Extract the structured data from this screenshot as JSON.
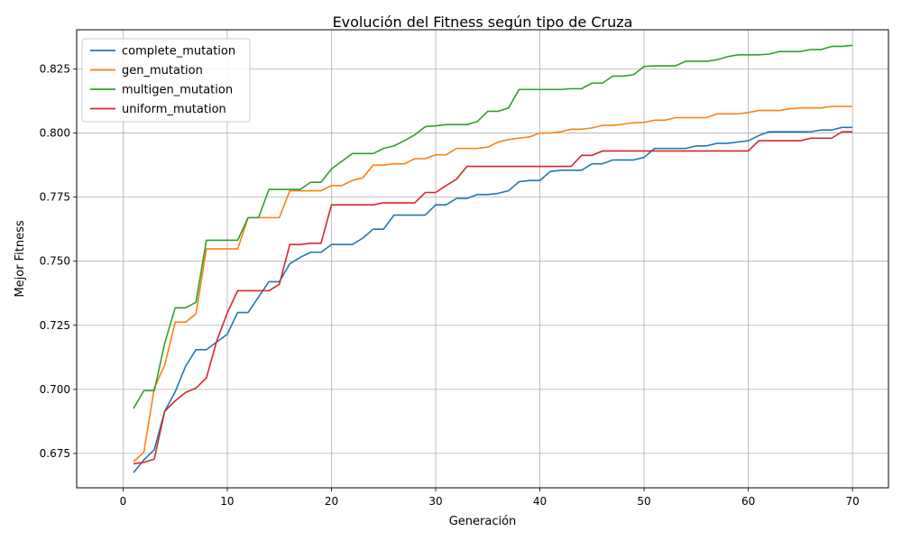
{
  "chart_data": {
    "type": "line",
    "title": "Evolución del Fitness según tipo de Cruza",
    "xlabel": "Generación",
    "ylabel": "Mejor Fitness",
    "xlim": [
      -4.45,
      73.45
    ],
    "ylim": [
      0.6616,
      0.8403
    ],
    "xticks": [
      0,
      10,
      20,
      30,
      40,
      50,
      60,
      70
    ],
    "yticks": [
      0.675,
      0.7,
      0.725,
      0.75,
      0.775,
      0.8,
      0.825
    ],
    "xtick_labels": [
      "0",
      "10",
      "20",
      "30",
      "40",
      "50",
      "60",
      "70"
    ],
    "ytick_labels": [
      "0.675",
      "0.700",
      "0.725",
      "0.750",
      "0.775",
      "0.800",
      "0.825"
    ],
    "grid": true,
    "legend_position": "top-left",
    "series": [
      {
        "name": "complete_mutation",
        "color": "#1f77b4",
        "x": [
          1,
          2,
          3,
          4,
          5,
          6,
          7,
          8,
          9,
          10,
          11,
          12,
          13,
          14,
          15,
          16,
          17,
          18,
          19,
          20,
          21,
          22,
          23,
          24,
          25,
          26,
          27,
          28,
          29,
          30,
          31,
          32,
          33,
          34,
          35,
          36,
          37,
          38,
          39,
          40,
          41,
          42,
          43,
          44,
          45,
          46,
          47,
          48,
          49,
          50,
          51,
          52,
          53,
          54,
          55,
          56,
          57,
          58,
          59,
          60,
          61,
          62,
          63,
          64,
          65,
          66,
          67,
          68,
          69,
          70
        ],
        "y": [
          0.6675,
          0.6725,
          0.6765,
          0.6915,
          0.699,
          0.709,
          0.7155,
          0.7155,
          0.7185,
          0.7215,
          0.73,
          0.73,
          0.736,
          0.742,
          0.742,
          0.749,
          0.7515,
          0.7535,
          0.7535,
          0.7565,
          0.7565,
          0.7565,
          0.759,
          0.7625,
          0.7625,
          0.768,
          0.768,
          0.768,
          0.768,
          0.772,
          0.772,
          0.7745,
          0.7745,
          0.776,
          0.776,
          0.7765,
          0.7775,
          0.781,
          0.7815,
          0.7815,
          0.785,
          0.7855,
          0.7855,
          0.7855,
          0.788,
          0.788,
          0.7895,
          0.7895,
          0.7895,
          0.7905,
          0.794,
          0.794,
          0.794,
          0.794,
          0.795,
          0.795,
          0.796,
          0.796,
          0.7965,
          0.797,
          0.799,
          0.8005,
          0.8005,
          0.8005,
          0.8005,
          0.8005,
          0.8012,
          0.8012,
          0.8022,
          0.8022
        ]
      },
      {
        "name": "gen_mutation",
        "color": "#ff7f0e",
        "x": [
          1,
          2,
          3,
          4,
          5,
          6,
          7,
          8,
          9,
          10,
          11,
          12,
          13,
          14,
          15,
          16,
          17,
          18,
          19,
          20,
          21,
          22,
          23,
          24,
          25,
          26,
          27,
          28,
          29,
          30,
          31,
          32,
          33,
          34,
          35,
          36,
          37,
          38,
          39,
          40,
          41,
          42,
          43,
          44,
          45,
          46,
          47,
          48,
          49,
          50,
          51,
          52,
          53,
          54,
          55,
          56,
          57,
          58,
          59,
          60,
          61,
          62,
          63,
          64,
          65,
          66,
          67,
          68,
          69,
          70
        ],
        "y": [
          0.6718,
          0.6755,
          0.7005,
          0.7095,
          0.7262,
          0.7262,
          0.7295,
          0.7548,
          0.7548,
          0.7548,
          0.7548,
          0.767,
          0.767,
          0.767,
          0.767,
          0.7775,
          0.7775,
          0.7775,
          0.7775,
          0.7795,
          0.7795,
          0.7815,
          0.7825,
          0.7875,
          0.7875,
          0.788,
          0.788,
          0.79,
          0.79,
          0.7915,
          0.7915,
          0.794,
          0.794,
          0.794,
          0.7945,
          0.7965,
          0.7975,
          0.798,
          0.7985,
          0.8,
          0.8,
          0.8005,
          0.8015,
          0.8015,
          0.802,
          0.803,
          0.803,
          0.8035,
          0.804,
          0.8042,
          0.805,
          0.805,
          0.806,
          0.806,
          0.806,
          0.806,
          0.8075,
          0.8075,
          0.8075,
          0.808,
          0.8088,
          0.8088,
          0.8088,
          0.8095,
          0.8098,
          0.8098,
          0.8098,
          0.8104,
          0.8104,
          0.8104
        ]
      },
      {
        "name": "multigen_mutation",
        "color": "#2ca02c",
        "x": [
          1,
          2,
          3,
          4,
          5,
          6,
          7,
          8,
          9,
          10,
          11,
          12,
          13,
          14,
          15,
          16,
          17,
          18,
          19,
          20,
          21,
          22,
          23,
          24,
          25,
          26,
          27,
          28,
          29,
          30,
          31,
          32,
          33,
          34,
          35,
          36,
          37,
          38,
          39,
          40,
          41,
          42,
          43,
          44,
          45,
          46,
          47,
          48,
          49,
          50,
          51,
          52,
          53,
          54,
          55,
          56,
          57,
          58,
          59,
          60,
          61,
          62,
          63,
          64,
          65,
          66,
          67,
          68,
          69,
          70
        ],
        "y": [
          0.6925,
          0.6995,
          0.6995,
          0.718,
          0.7318,
          0.7318,
          0.734,
          0.7582,
          0.7582,
          0.7582,
          0.7582,
          0.767,
          0.767,
          0.778,
          0.778,
          0.778,
          0.778,
          0.7808,
          0.7808,
          0.786,
          0.789,
          0.792,
          0.792,
          0.792,
          0.794,
          0.795,
          0.797,
          0.7993,
          0.8025,
          0.8028,
          0.8033,
          0.8033,
          0.8033,
          0.8045,
          0.8085,
          0.8085,
          0.8098,
          0.817,
          0.817,
          0.817,
          0.817,
          0.817,
          0.8173,
          0.8173,
          0.8195,
          0.8195,
          0.8222,
          0.8222,
          0.8228,
          0.826,
          0.8262,
          0.8262,
          0.8262,
          0.828,
          0.828,
          0.828,
          0.8286,
          0.8298,
          0.8305,
          0.8305,
          0.8305,
          0.8308,
          0.8318,
          0.8318,
          0.8318,
          0.8326,
          0.8326,
          0.8338,
          0.8338,
          0.8342
        ]
      },
      {
        "name": "uniform_mutation",
        "color": "#d62728",
        "x": [
          1,
          2,
          3,
          4,
          5,
          6,
          7,
          8,
          9,
          10,
          11,
          12,
          13,
          14,
          15,
          16,
          17,
          18,
          19,
          20,
          21,
          22,
          23,
          24,
          25,
          26,
          27,
          28,
          29,
          30,
          31,
          32,
          33,
          34,
          35,
          36,
          37,
          38,
          39,
          40,
          41,
          42,
          43,
          44,
          45,
          46,
          47,
          48,
          49,
          50,
          51,
          52,
          53,
          54,
          55,
          56,
          57,
          58,
          59,
          60,
          61,
          62,
          63,
          64,
          65,
          66,
          67,
          68,
          69,
          70
        ],
        "y": [
          0.671,
          0.6715,
          0.6728,
          0.6915,
          0.6955,
          0.6988,
          0.7005,
          0.7045,
          0.719,
          0.7298,
          0.7385,
          0.7385,
          0.7385,
          0.7385,
          0.741,
          0.7565,
          0.7565,
          0.757,
          0.757,
          0.772,
          0.772,
          0.772,
          0.772,
          0.772,
          0.7728,
          0.7728,
          0.7728,
          0.7728,
          0.7768,
          0.7768,
          0.7795,
          0.782,
          0.787,
          0.787,
          0.787,
          0.787,
          0.787,
          0.787,
          0.787,
          0.787,
          0.787,
          0.787,
          0.787,
          0.7913,
          0.7913,
          0.793,
          0.793,
          0.793,
          0.793,
          0.793,
          0.793,
          0.793,
          0.793,
          0.793,
          0.793,
          0.793,
          0.793,
          0.793,
          0.793,
          0.793,
          0.797,
          0.797,
          0.797,
          0.797,
          0.797,
          0.798,
          0.798,
          0.798,
          0.8005,
          0.8005
        ]
      }
    ]
  }
}
